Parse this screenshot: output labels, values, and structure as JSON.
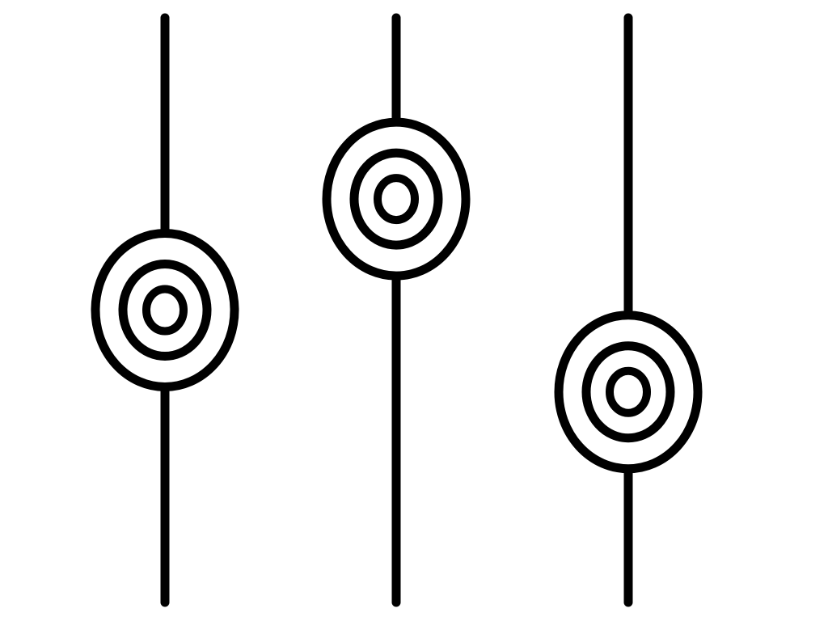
{
  "sliders": [
    {
      "name": "slider-1",
      "level": 0.5
    },
    {
      "name": "slider-2",
      "level": 0.69
    },
    {
      "name": "slider-3",
      "level": 0.36
    }
  ],
  "colors": {
    "stroke": "#000000",
    "background": "#ffffff"
  },
  "icons": {
    "knob": "concentric-circles-knob-icon"
  }
}
